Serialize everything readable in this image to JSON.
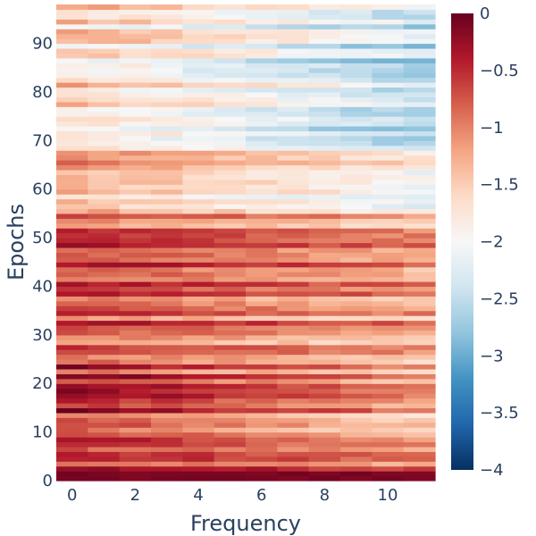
{
  "chart_data": {
    "type": "heatmap",
    "title": "",
    "xlabel": "Frequency",
    "ylabel": "Epochs",
    "x_range": [
      -0.5,
      11.5
    ],
    "y_range": [
      0,
      98
    ],
    "x_ticks": [
      0,
      2,
      4,
      6,
      8,
      10
    ],
    "y_ticks": [
      0,
      10,
      20,
      30,
      40,
      50,
      60,
      70,
      80,
      90
    ],
    "x_categories": [
      0,
      1,
      2,
      3,
      4,
      5,
      6,
      7,
      8,
      9,
      10,
      11
    ],
    "epochs": 98,
    "colorscale": "RdBu",
    "zmin": -4,
    "zmax": 0,
    "colorbar_ticks": [
      0,
      -0.5,
      -1,
      -1.5,
      -2,
      -2.5,
      -3,
      -3.5,
      -4
    ],
    "colorbar_tick_labels": [
      "0",
      "−0.5",
      "−1",
      "−1.5",
      "−2",
      "−2.5",
      "−3",
      "−3.5",
      "−4"
    ],
    "y_tick_labels": [
      "0",
      "10",
      "20",
      "30",
      "40",
      "50",
      "60",
      "70",
      "80",
      "90"
    ],
    "x_tick_labels": [
      "0",
      "2",
      "4",
      "6",
      "8",
      "10"
    ],
    "approx_values_description_by_epoch_band": [
      {
        "epochs": [
          0,
          8
        ],
        "low_freq": -0.4,
        "high_freq": -0.8
      },
      {
        "epochs": [
          8,
          25
        ],
        "low_freq": -0.5,
        "high_freq": -1.3
      },
      {
        "epochs": [
          25,
          55
        ],
        "low_freq": -0.7,
        "high_freq": -1.2
      },
      {
        "epochs": [
          55,
          68
        ],
        "low_freq": -1.2,
        "high_freq": -1.9
      },
      {
        "epochs": [
          68,
          98
        ],
        "low_freq": -1.6,
        "high_freq": -2.5
      }
    ]
  }
}
